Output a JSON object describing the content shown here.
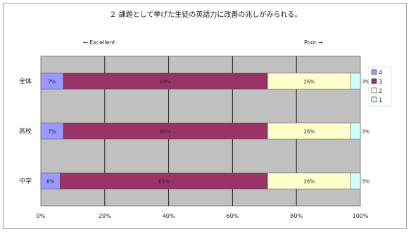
{
  "chart_data": {
    "type": "bar",
    "orientation": "horizontal",
    "stacked": "percent",
    "title": "２ 課題として挙げた生徒の英語力に改善の兆しがみられる。",
    "annotations": {
      "left": "← Excellent",
      "right": "Poor →"
    },
    "categories": [
      "全体",
      "高校",
      "中学"
    ],
    "series": [
      {
        "name": "4",
        "color": "#9999ff",
        "values": [
          7,
          7,
          6
        ]
      },
      {
        "name": "3",
        "color": "#993366",
        "values": [
          64,
          64,
          65
        ],
        "labels": [
          "64%",
          "64%",
          "65%"
        ]
      },
      {
        "name": "2",
        "color": "#ffffcc",
        "values": [
          26,
          26,
          26
        ],
        "labels": [
          "26%",
          "26%",
          "26%"
        ]
      },
      {
        "name": "1",
        "color": "#ccffff",
        "values": [
          3,
          3,
          3
        ]
      }
    ],
    "data_labels": [
      [
        "7%",
        "64%",
        "26%",
        "3%"
      ],
      [
        "7%",
        "64%",
        "26%",
        "3%"
      ],
      [
        "6%",
        "65%",
        "26%",
        "3%"
      ]
    ],
    "x_ticks": [
      "0%",
      "20%",
      "40%",
      "60%",
      "80%",
      "100%"
    ],
    "xlim": [
      0,
      100
    ],
    "grid": true,
    "plot_background": "#c0c0c0",
    "legend_position": "right",
    "legend": [
      "4",
      "3",
      "2",
      "1"
    ]
  }
}
